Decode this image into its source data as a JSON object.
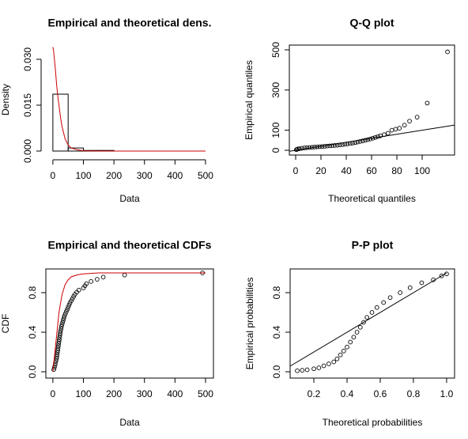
{
  "chart_data": [
    {
      "type": "histogram",
      "title": "Empirical and theoretical dens.",
      "x_label": "Data",
      "y_label": "Density",
      "box": false,
      "xlim": [
        -23,
        526
      ],
      "ylim": [
        -0.0013,
        0.0349
      ],
      "xticks": [
        0,
        100,
        200,
        300,
        400,
        500
      ],
      "yticks": [
        {
          "value": 0,
          "label": "0.000"
        },
        {
          "value": 0.015,
          "label": "0.015"
        },
        {
          "value": 0.03,
          "label": "0.030"
        }
      ],
      "bins": [
        0,
        50,
        100,
        150,
        200
      ],
      "values": [
        0.0186,
        0.001,
        0.0002,
        0.0002
      ],
      "color": "#000000",
      "line": {
        "color": "#cc0000",
        "x": [
          0,
          2,
          5,
          8,
          12,
          16,
          20,
          25,
          30,
          40,
          50,
          60,
          80,
          100,
          150,
          200,
          300,
          500
        ],
        "y": [
          0.034,
          0.033,
          0.03,
          0.027,
          0.022,
          0.018,
          0.015,
          0.011,
          0.008,
          0.004,
          0.002,
          0.001,
          0.0004,
          0.0001,
          0,
          0,
          0,
          0
        ]
      }
    },
    {
      "type": "scatter",
      "title": "Q-Q plot",
      "x_label": "Theoretical quantiles",
      "y_label": "Empirical quantiles",
      "box": true,
      "xlim": [
        -5,
        125.6
      ],
      "ylim": [
        -23.6,
        523.6
      ],
      "xticks": [
        0,
        20,
        40,
        60,
        80,
        100
      ],
      "yticks": [
        0,
        100,
        300,
        500
      ],
      "points": {
        "color": "#000000",
        "x": [
          0.5,
          1,
          2,
          3,
          5,
          7,
          9,
          11,
          13,
          15,
          17,
          19,
          21,
          23,
          25,
          27,
          29,
          31,
          33,
          35,
          37,
          39,
          41,
          43,
          45,
          47,
          49,
          51,
          53,
          55,
          57,
          59,
          61,
          63,
          65,
          67,
          70,
          73,
          76,
          79,
          82,
          86,
          90,
          96,
          104,
          120
        ],
        "y": [
          3,
          5,
          7,
          8,
          10,
          12,
          13,
          14,
          15,
          16,
          17,
          18,
          19,
          20,
          21,
          22,
          23,
          24,
          25,
          27,
          28,
          30,
          32,
          34,
          36,
          38,
          41,
          44,
          47,
          50,
          53,
          56,
          60,
          64,
          68,
          72,
          78,
          85,
          100,
          105,
          110,
          125,
          145,
          165,
          235,
          490
        ]
      },
      "line": {
        "color": "#000000",
        "x": [
          -5,
          125.6
        ],
        "y": [
          -5,
          125.6
        ]
      }
    },
    {
      "type": "scatter",
      "title": "Empirical and theoretical CDFs",
      "x_label": "Data",
      "y_label": "CDF",
      "box": true,
      "xlim": [
        -23,
        526
      ],
      "ylim": [
        -0.064,
        1.04
      ],
      "xticks": [
        0,
        100,
        200,
        300,
        400,
        500
      ],
      "yticks": [
        {
          "value": 0,
          "label": "0.0"
        },
        {
          "value": 0.4,
          "label": "0.4"
        },
        {
          "value": 0.8,
          "label": "0.8"
        }
      ],
      "points": {
        "color": "#000000",
        "x": [
          3,
          5,
          7,
          8,
          10,
          12,
          13,
          14,
          15,
          16,
          17,
          18,
          19,
          20,
          21,
          22,
          23,
          24,
          25,
          27,
          28,
          30,
          32,
          34,
          36,
          38,
          41,
          44,
          47,
          50,
          53,
          56,
          60,
          64,
          68,
          72,
          78,
          85,
          100,
          105,
          110,
          125,
          145,
          165,
          235,
          490
        ],
        "y": [
          0.022,
          0.043,
          0.065,
          0.087,
          0.109,
          0.13,
          0.152,
          0.174,
          0.196,
          0.217,
          0.239,
          0.261,
          0.283,
          0.304,
          0.326,
          0.348,
          0.37,
          0.391,
          0.413,
          0.435,
          0.457,
          0.478,
          0.5,
          0.522,
          0.543,
          0.565,
          0.587,
          0.609,
          0.63,
          0.652,
          0.674,
          0.696,
          0.717,
          0.739,
          0.761,
          0.783,
          0.804,
          0.826,
          0.848,
          0.87,
          0.891,
          0.913,
          0.935,
          0.957,
          0.978,
          1.0
        ]
      },
      "line": {
        "color": "#cc0000",
        "x": [
          0,
          10,
          20,
          30,
          40,
          50,
          60,
          80,
          100,
          150,
          200,
          500
        ],
        "y": [
          0,
          0.3,
          0.6,
          0.78,
          0.88,
          0.93,
          0.96,
          0.98,
          0.99,
          1,
          1,
          1
        ]
      }
    },
    {
      "type": "scatter",
      "title": "P-P plot",
      "x_label": "Theoretical probabilities",
      "y_label": "Empirical probabilities",
      "box": true,
      "xlim": [
        0.057,
        1.048
      ],
      "ylim": [
        -0.064,
        1.04
      ],
      "xticks": [
        0.2,
        0.4,
        0.6,
        0.8,
        {
          "value": 1,
          "label": "1.0"
        }
      ],
      "yticks": [
        {
          "value": 0,
          "label": "0.0"
        },
        {
          "value": 0.4,
          "label": "0.4"
        },
        {
          "value": 0.8,
          "label": "0.8"
        }
      ],
      "points": {
        "color": "#000000",
        "x": [
          0.1,
          0.13,
          0.16,
          0.2,
          0.23,
          0.26,
          0.29,
          0.32,
          0.34,
          0.36,
          0.38,
          0.4,
          0.42,
          0.44,
          0.46,
          0.48,
          0.5,
          0.52,
          0.55,
          0.58,
          0.62,
          0.66,
          0.72,
          0.78,
          0.85,
          0.92,
          0.97,
          1.0
        ],
        "y": [
          0.01,
          0.015,
          0.02,
          0.03,
          0.04,
          0.06,
          0.08,
          0.1,
          0.13,
          0.17,
          0.21,
          0.25,
          0.3,
          0.35,
          0.4,
          0.45,
          0.5,
          0.55,
          0.6,
          0.65,
          0.7,
          0.75,
          0.8,
          0.85,
          0.9,
          0.93,
          0.97,
          0.99
        ]
      },
      "line": {
        "color": "#000000",
        "x": [
          0.057,
          1.0
        ],
        "y": [
          0.057,
          1.0
        ]
      }
    }
  ]
}
